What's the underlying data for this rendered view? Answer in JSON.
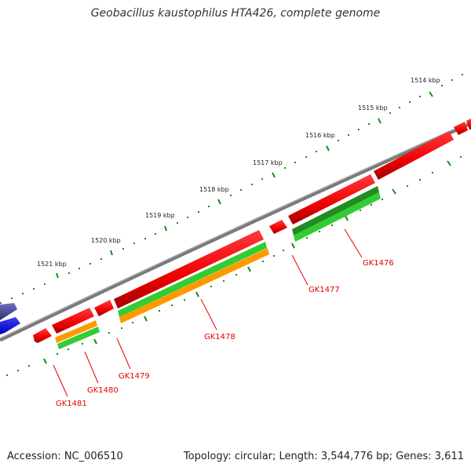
{
  "title": "Geobacillus kaustophilus HTA426, complete genome",
  "footer": {
    "accession": "Accession: NC_006510",
    "topology": "Topology: circular; Length: 3,544,776 bp; Genes: 3,611"
  },
  "scale_labels": [
    "1514 kbp",
    "1515 kbp",
    "1516 kbp",
    "1517 kbp",
    "1518 kbp",
    "1519 kbp",
    "1520 kbp",
    "1521 kbp"
  ],
  "gene_labels": [
    "GK1476",
    "GK1477",
    "GK1478",
    "GK1479",
    "GK1480",
    "GK1481"
  ],
  "colors": {
    "backbone": "#7a7a7a",
    "forward_gene": "#ff1010",
    "rna_orange": "#ff9900",
    "rna_green": "#33cc33",
    "dark_green": "#228b22",
    "tick": "#1a8a1a",
    "label": "#e60000",
    "blue_gene": "#0000ff",
    "purple_gene": "#5050a0"
  }
}
